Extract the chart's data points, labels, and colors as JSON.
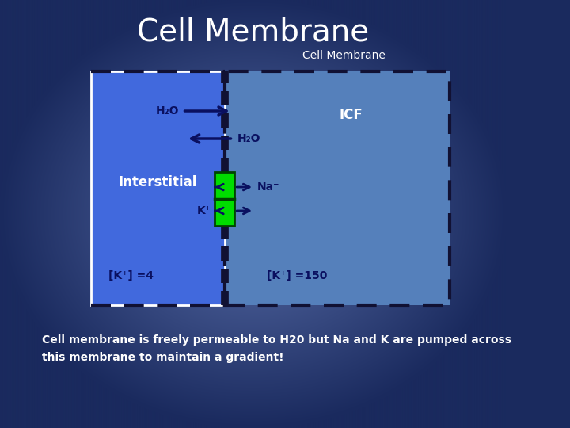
{
  "title": "Cell Membrane",
  "subtitle": "Cell Membrane",
  "bg_gradient_center": "#5a6faa",
  "bg_gradient_edge": "#1a2a5e",
  "left_rect_color": "#4169dd",
  "right_rect_color": "#5580bb",
  "membrane_line_color": "#111133",
  "dashed_border_color": "#111133",
  "white_border_color": "#ffffff",
  "interstitial_label": "Interstitial",
  "icf_label": "ICF",
  "h2o_label": "H₂O",
  "na_label": "Na⁻",
  "k_label": "K⁺",
  "k_conc_left": "[K⁺] =4",
  "k_conc_right": "[K⁺] =150",
  "footer_text": "Cell membrane is freely permeable to H20 but Na and K are pumped across\nthis membrane to maintain a gradient!",
  "white": "#ffffff",
  "green": "#00dd00",
  "dark_navy": "#0a1060",
  "arrow_color": "#0a1060",
  "label_color": "#0a1060"
}
